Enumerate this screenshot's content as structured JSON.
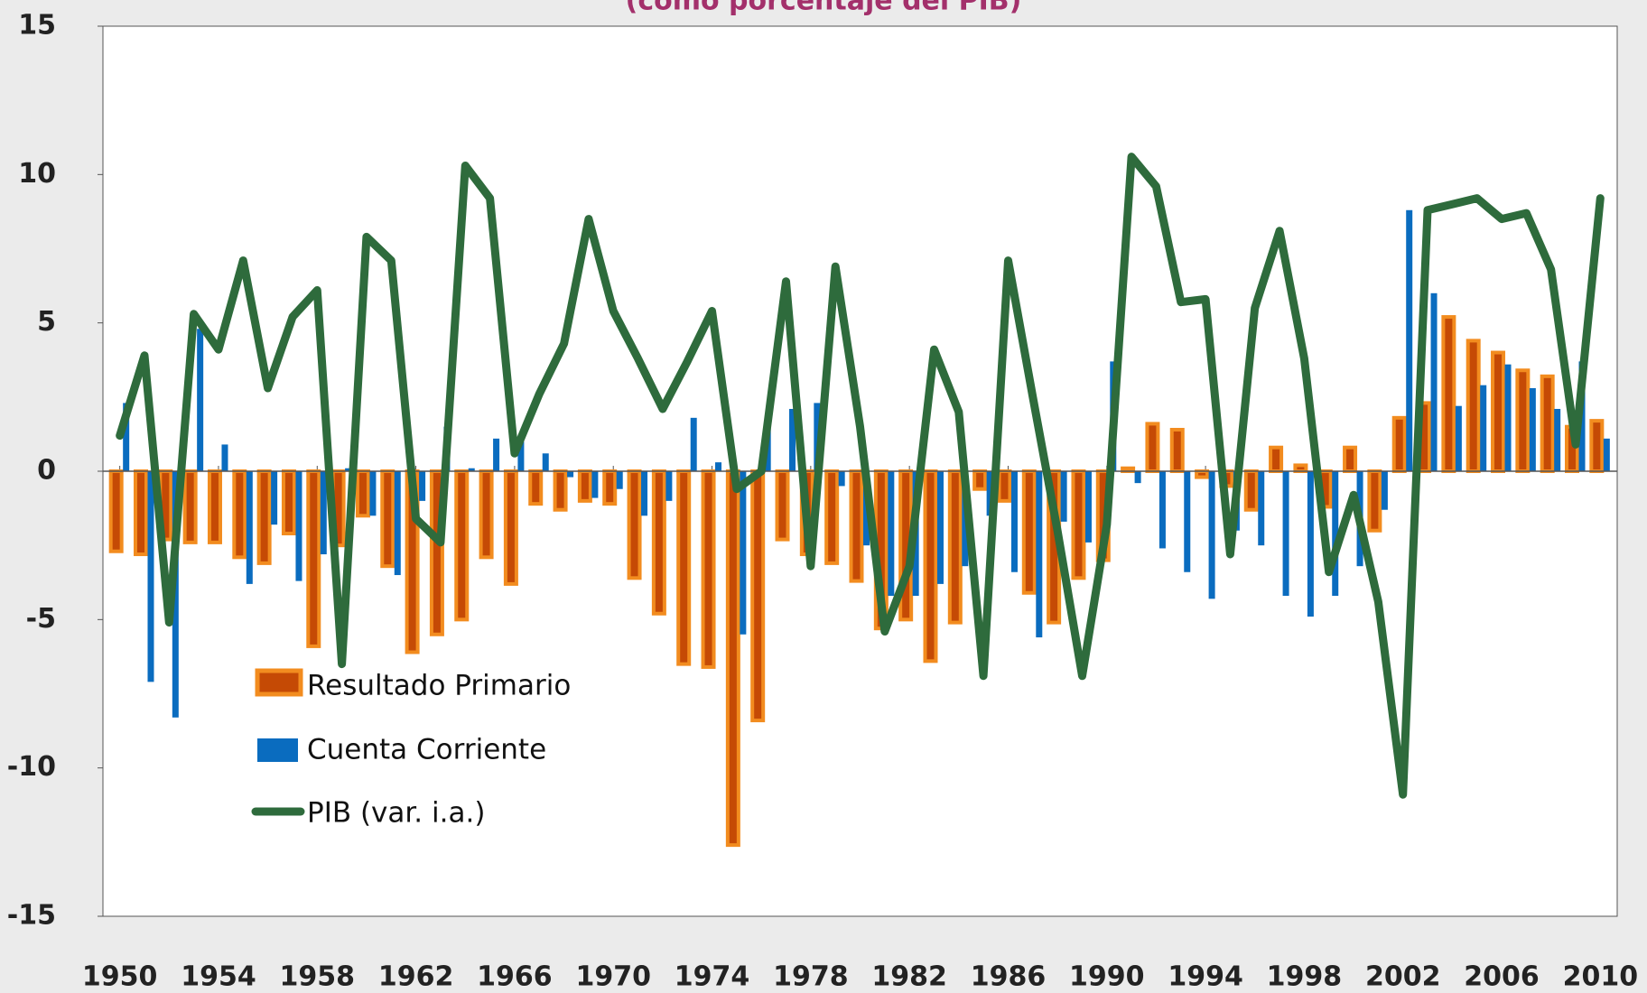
{
  "chart_data": {
    "type": "bar",
    "title": "(como porcentaje del PIB)",
    "categories": [
      "1950",
      null,
      null,
      null,
      "1954",
      null,
      null,
      null,
      "1958",
      null,
      null,
      null,
      "1962",
      null,
      null,
      null,
      "1966",
      null,
      null,
      null,
      "1970",
      null,
      null,
      null,
      "1974",
      null,
      null,
      null,
      "1978",
      null,
      null,
      null,
      "1982",
      null,
      null,
      null,
      "1986",
      null,
      null,
      null,
      "1990",
      null,
      null,
      null,
      "1994",
      null,
      null,
      null,
      "1998",
      null,
      null,
      null,
      "2002",
      null,
      null,
      null,
      "2006",
      null,
      null,
      null,
      "2010"
    ],
    "series": [
      {
        "name": "Resultado Primario",
        "type": "bar",
        "color": "#c54a05",
        "edge_color": "#f28c1f",
        "values": [
          -2.7,
          -2.8,
          -2.3,
          -2.4,
          -2.4,
          -2.9,
          -3.1,
          -2.1,
          -5.9,
          -2.5,
          -1.5,
          -3.2,
          -6.1,
          -5.5,
          -5.0,
          -2.9,
          -3.8,
          -1.1,
          -1.3,
          -1.0,
          -1.1,
          -3.6,
          -4.8,
          -6.5,
          -6.6,
          -12.6,
          -8.4,
          -2.3,
          -2.8,
          -3.1,
          -3.7,
          -5.3,
          -5.0,
          -6.4,
          -5.1,
          -0.6,
          -1.0,
          -4.1,
          -5.1,
          -3.6,
          -3.0,
          0.1,
          1.6,
          1.4,
          -0.2,
          -0.5,
          -1.3,
          0.8,
          0.2,
          -1.2,
          0.8,
          -2.0,
          1.8,
          2.3,
          5.2,
          4.4,
          4.0,
          3.4,
          3.2,
          1.5,
          1.7
        ]
      },
      {
        "name": "Cuenta Corriente",
        "type": "bar",
        "color": "#0a6cbf",
        "values": [
          2.3,
          -7.1,
          -8.3,
          4.8,
          0.9,
          -3.8,
          -1.8,
          -3.7,
          -2.8,
          0.1,
          -1.5,
          -3.5,
          -1.0,
          1.5,
          0.1,
          1.1,
          1.0,
          0.6,
          -0.2,
          -0.9,
          -0.6,
          -1.5,
          -1.0,
          1.8,
          0.3,
          -5.5,
          1.8,
          2.1,
          2.3,
          -0.5,
          -2.5,
          -4.2,
          -4.2,
          -3.8,
          -3.2,
          -1.5,
          -3.4,
          -5.6,
          -1.7,
          -2.4,
          3.7,
          -0.4,
          -2.6,
          -3.4,
          -4.3,
          -2.0,
          -2.5,
          -4.2,
          -4.9,
          -4.2,
          -3.2,
          -1.3,
          8.8,
          6.0,
          2.2,
          2.9,
          3.6,
          2.8,
          2.1,
          3.7,
          1.1
        ]
      },
      {
        "name": "PIB (var. i.a.)",
        "type": "line",
        "color": "#2e6b3c",
        "values": [
          1.2,
          3.9,
          -5.1,
          5.3,
          4.1,
          7.1,
          2.8,
          5.2,
          6.1,
          -6.5,
          7.9,
          7.1,
          -1.6,
          -2.4,
          10.3,
          9.2,
          0.6,
          2.6,
          4.3,
          8.5,
          5.4,
          3.8,
          2.1,
          3.7,
          5.4,
          -0.6,
          0.0,
          6.4,
          -3.2,
          6.9,
          1.5,
          -5.4,
          -3.2,
          4.1,
          2.0,
          -6.9,
          7.1,
          2.5,
          -2.0,
          -6.9,
          -1.8,
          10.6,
          9.6,
          5.7,
          5.8,
          -2.8,
          5.5,
          8.1,
          3.8,
          -3.4,
          -0.8,
          -4.4,
          -10.9,
          8.8,
          9.0,
          9.2,
          8.5,
          8.7,
          6.8,
          0.9,
          9.2
        ]
      }
    ],
    "ylim": [
      -15,
      15
    ],
    "yticks": [
      -15,
      -10,
      -5,
      0,
      5,
      10,
      15
    ],
    "grid": false
  }
}
